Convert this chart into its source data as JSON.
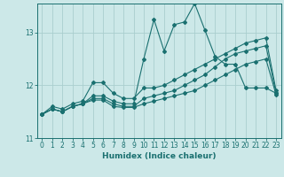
{
  "xlabel": "Humidex (Indice chaleur)",
  "background_color": "#cce8e8",
  "grid_color": "#aacece",
  "line_color": "#1a7070",
  "xlim": [
    -0.5,
    23.5
  ],
  "ylim": [
    11.0,
    13.55
  ],
  "yticks": [
    11,
    12,
    13
  ],
  "xticks": [
    0,
    1,
    2,
    3,
    4,
    5,
    6,
    7,
    8,
    9,
    10,
    11,
    12,
    13,
    14,
    15,
    16,
    17,
    18,
    19,
    20,
    21,
    22,
    23
  ],
  "series": [
    [
      11.45,
      11.6,
      11.55,
      11.65,
      11.7,
      12.05,
      12.05,
      11.85,
      11.75,
      11.75,
      11.95,
      11.95,
      12.0,
      12.1,
      12.2,
      12.3,
      12.4,
      12.5,
      12.6,
      12.7,
      12.8,
      12.85,
      12.9,
      11.9
    ],
    [
      11.45,
      11.55,
      11.5,
      11.6,
      11.65,
      11.8,
      11.8,
      11.7,
      11.65,
      11.65,
      12.5,
      13.25,
      12.65,
      13.15,
      13.2,
      13.55,
      13.05,
      12.55,
      12.4,
      12.4,
      11.95,
      11.95,
      11.95,
      11.85
    ],
    [
      11.45,
      11.55,
      11.5,
      11.6,
      11.65,
      11.75,
      11.75,
      11.65,
      11.6,
      11.6,
      11.75,
      11.8,
      11.85,
      11.9,
      12.0,
      12.1,
      12.2,
      12.35,
      12.5,
      12.6,
      12.65,
      12.7,
      12.75,
      11.85
    ],
    [
      11.45,
      11.55,
      11.5,
      11.6,
      11.65,
      11.72,
      11.72,
      11.6,
      11.58,
      11.58,
      11.65,
      11.7,
      11.75,
      11.8,
      11.85,
      11.9,
      12.0,
      12.1,
      12.2,
      12.3,
      12.4,
      12.45,
      12.5,
      11.82
    ]
  ]
}
